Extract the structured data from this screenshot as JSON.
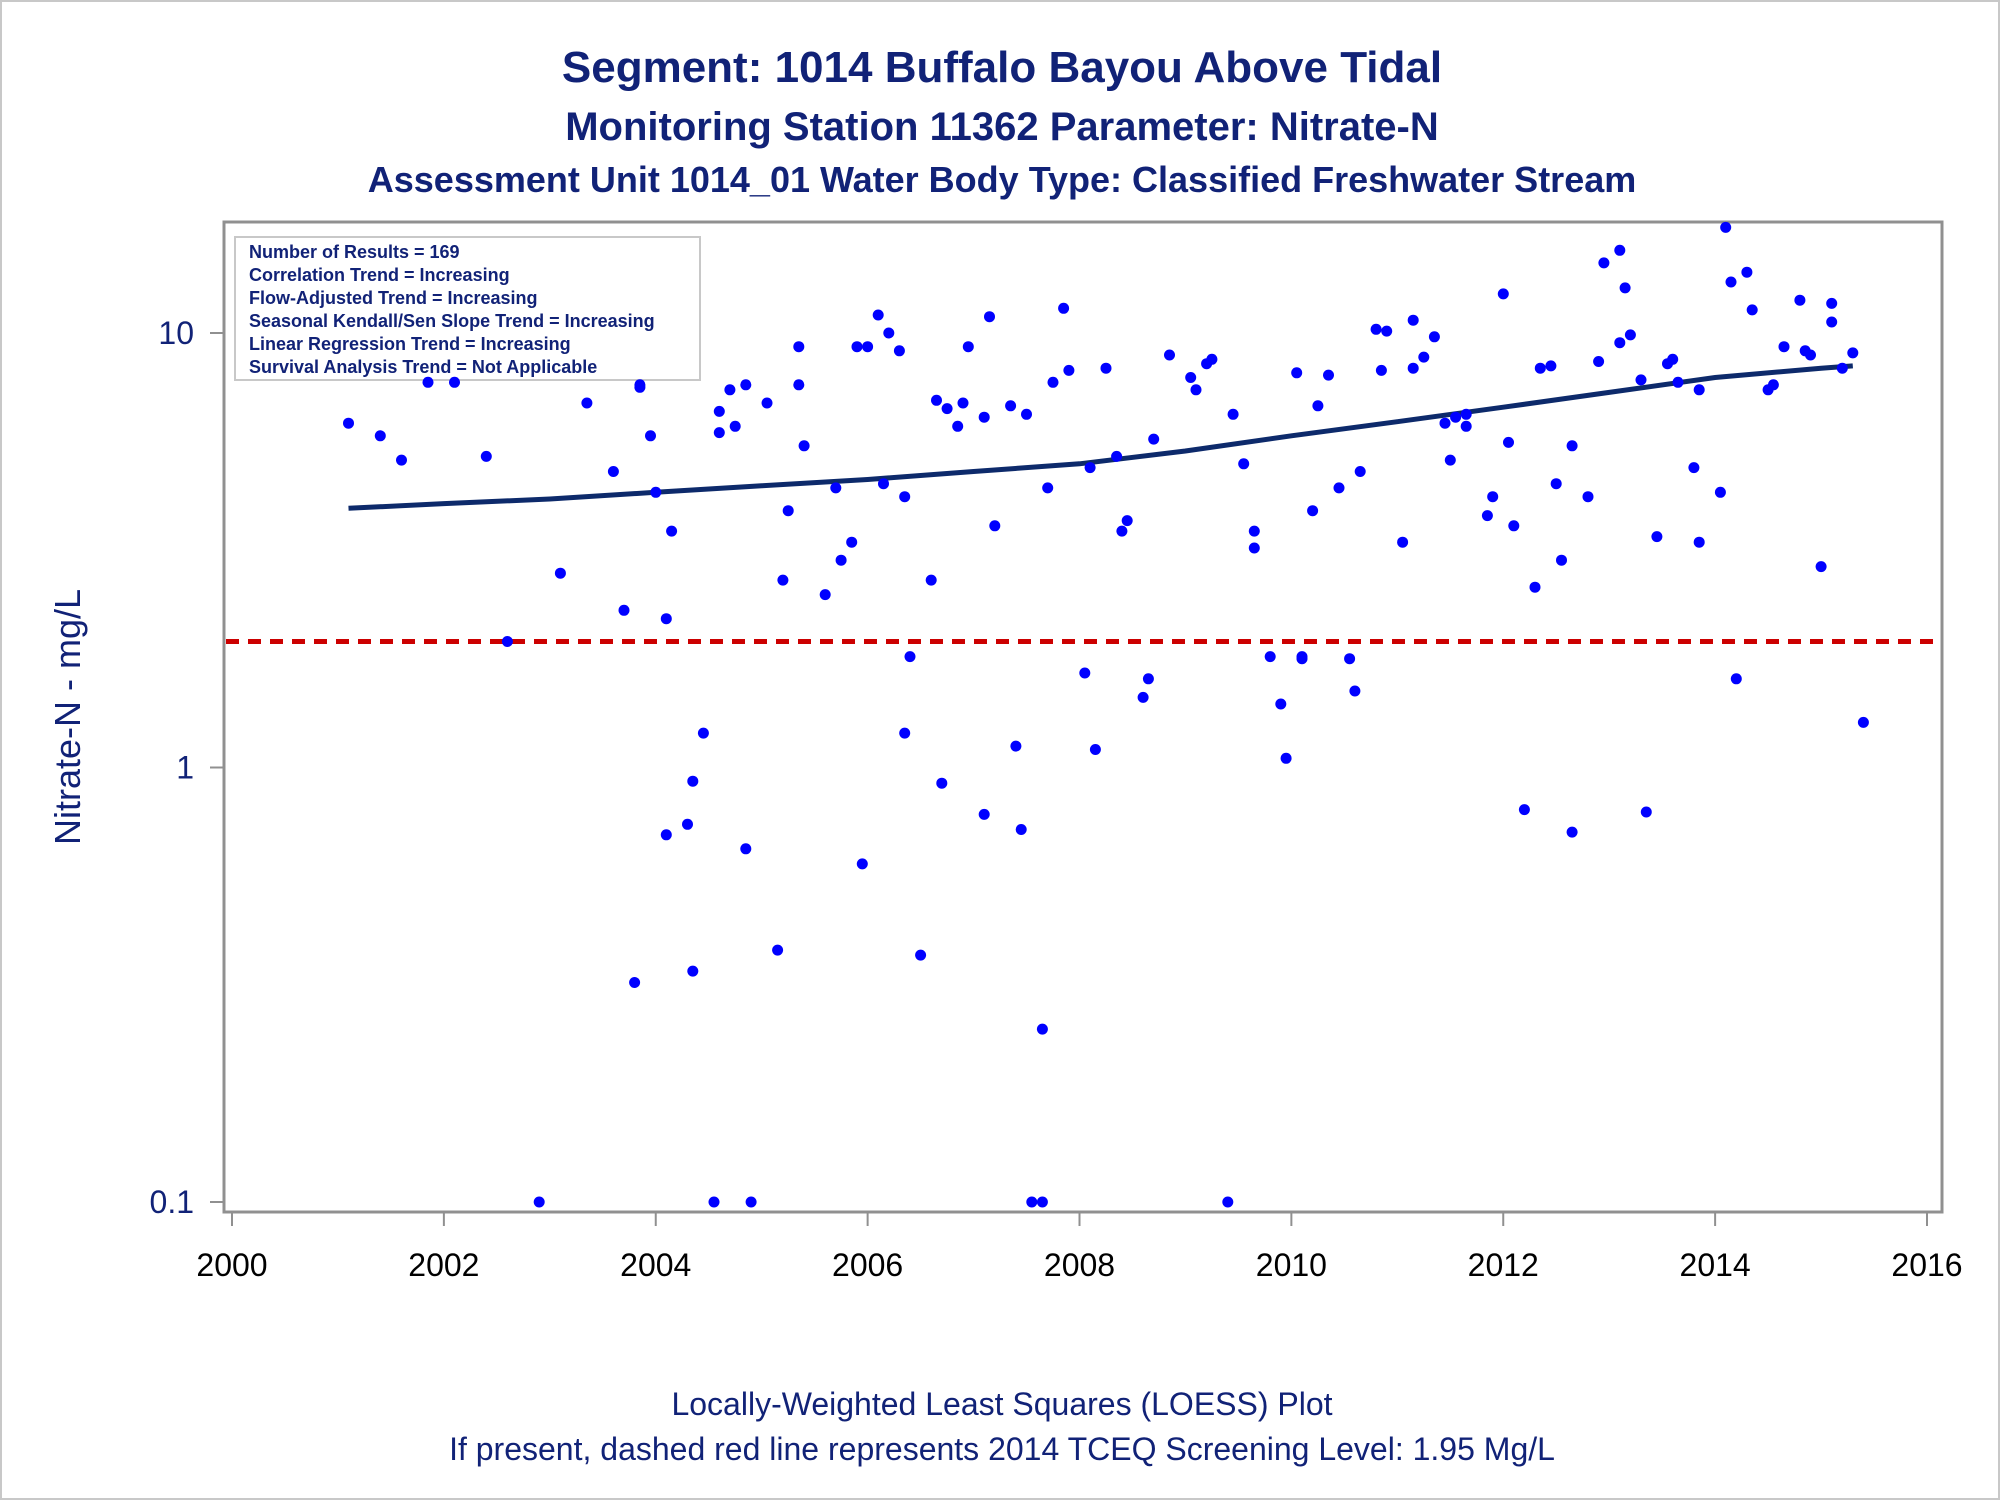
{
  "chart_data": {
    "type": "scatter",
    "title": "Segment: 1014  Buffalo Bayou Above Tidal",
    "subtitle": "Monitoring Station 11362 Parameter: Nitrate-N",
    "subtitle2": "Assessment Unit 1014_01   Water Body Type: Classified Freshwater Stream",
    "ylabel": "Nitrate-N - mg/L",
    "xlabel": "",
    "xlim": [
      2000,
      2016
    ],
    "ylim": [
      0.1,
      18
    ],
    "yscale": "log",
    "xticks": [
      "2000",
      "2002",
      "2004",
      "2006",
      "2008",
      "2010",
      "2012",
      "2014",
      "2016"
    ],
    "yticks": [
      "0.1",
      "1",
      "10"
    ],
    "legend_placement": "top-left",
    "stats_box": [
      "Number of Results = 169",
      "Correlation Trend = Increasing",
      "Flow-Adjusted Trend = Increasing",
      "Seasonal Kendall/Sen Slope Trend = Increasing",
      "Linear Regression Trend = Increasing",
      "Survival Analysis Trend = Not Applicable"
    ],
    "footer": [
      "Locally-Weighted Least Squares (LOESS) Plot",
      "If present, dashed red line represents 2014 TCEQ Screening Level: 1.95 Mg/L"
    ],
    "screening_level": 1.95,
    "colors": {
      "points": "#0000ff",
      "trend": "#0d2a6b",
      "screening": "#cc0000",
      "text": "#112277"
    },
    "points": [
      [
        2001.1,
        6.2
      ],
      [
        2001.4,
        5.8
      ],
      [
        2001.6,
        5.1
      ],
      [
        2001.85,
        7.7
      ],
      [
        2002.1,
        7.7
      ],
      [
        2002.4,
        5.2
      ],
      [
        2002.6,
        1.95
      ],
      [
        2002.9,
        0.1
      ],
      [
        2003.1,
        2.8
      ],
      [
        2003.35,
        6.9
      ],
      [
        2003.6,
        4.8
      ],
      [
        2003.7,
        2.3
      ],
      [
        2003.8,
        0.32
      ],
      [
        2003.85,
        7.6
      ],
      [
        2003.85,
        7.5
      ],
      [
        2003.95,
        5.8
      ],
      [
        2004.0,
        4.3
      ],
      [
        2004.1,
        2.2
      ],
      [
        2004.1,
        0.7
      ],
      [
        2004.15,
        3.5
      ],
      [
        2004.3,
        0.74
      ],
      [
        2004.35,
        0.93
      ],
      [
        2004.35,
        0.34
      ],
      [
        2004.45,
        1.2
      ],
      [
        2004.55,
        0.1
      ],
      [
        2004.6,
        6.6
      ],
      [
        2004.6,
        5.9
      ],
      [
        2004.7,
        7.4
      ],
      [
        2004.75,
        6.1
      ],
      [
        2004.85,
        7.6
      ],
      [
        2004.85,
        0.65
      ],
      [
        2004.9,
        0.1
      ],
      [
        2005.05,
        6.9
      ],
      [
        2005.15,
        0.38
      ],
      [
        2005.2,
        2.7
      ],
      [
        2005.25,
        3.9
      ],
      [
        2005.35,
        7.6
      ],
      [
        2005.35,
        9.3
      ],
      [
        2005.4,
        5.5
      ],
      [
        2005.6,
        2.5
      ],
      [
        2005.7,
        4.4
      ],
      [
        2005.75,
        3.0
      ],
      [
        2005.85,
        3.3
      ],
      [
        2005.9,
        9.3
      ],
      [
        2005.95,
        0.6
      ],
      [
        2006.0,
        9.3
      ],
      [
        2006.1,
        11.0
      ],
      [
        2006.15,
        4.5
      ],
      [
        2006.2,
        10.0
      ],
      [
        2006.3,
        9.1
      ],
      [
        2006.35,
        4.2
      ],
      [
        2006.35,
        1.2
      ],
      [
        2006.4,
        1.8
      ],
      [
        2006.5,
        0.37
      ],
      [
        2006.6,
        2.7
      ],
      [
        2006.65,
        7.0
      ],
      [
        2006.7,
        0.92
      ],
      [
        2006.75,
        6.7
      ],
      [
        2006.85,
        6.1
      ],
      [
        2006.9,
        6.9
      ],
      [
        2006.95,
        9.3
      ],
      [
        2007.1,
        0.78
      ],
      [
        2007.1,
        6.4
      ],
      [
        2007.15,
        10.9
      ],
      [
        2007.2,
        3.6
      ],
      [
        2007.35,
        6.8
      ],
      [
        2007.4,
        1.12
      ],
      [
        2007.45,
        0.72
      ],
      [
        2007.5,
        6.5
      ],
      [
        2007.55,
        0.1
      ],
      [
        2007.65,
        0.1
      ],
      [
        2007.65,
        0.25
      ],
      [
        2007.7,
        4.4
      ],
      [
        2007.75,
        7.7
      ],
      [
        2007.85,
        11.4
      ],
      [
        2007.9,
        8.2
      ],
      [
        2008.05,
        1.65
      ],
      [
        2008.1,
        4.9
      ],
      [
        2008.15,
        1.1
      ],
      [
        2008.25,
        8.3
      ],
      [
        2008.35,
        5.2
      ],
      [
        2008.4,
        3.5
      ],
      [
        2008.45,
        3.7
      ],
      [
        2008.6,
        1.45
      ],
      [
        2008.65,
        1.6
      ],
      [
        2008.7,
        5.7
      ],
      [
        2008.85,
        8.9
      ],
      [
        2009.05,
        7.9
      ],
      [
        2009.1,
        7.4
      ],
      [
        2009.2,
        8.5
      ],
      [
        2009.25,
        8.7
      ],
      [
        2009.4,
        0.1
      ],
      [
        2009.45,
        6.5
      ],
      [
        2009.55,
        5.0
      ],
      [
        2009.65,
        3.5
      ],
      [
        2009.65,
        3.2
      ],
      [
        2009.8,
        1.8
      ],
      [
        2009.9,
        1.4
      ],
      [
        2009.95,
        1.05
      ],
      [
        2010.05,
        8.1
      ],
      [
        2010.1,
        1.8
      ],
      [
        2010.1,
        1.78
      ],
      [
        2010.2,
        3.9
      ],
      [
        2010.25,
        6.8
      ],
      [
        2010.35,
        8.0
      ],
      [
        2010.45,
        4.4
      ],
      [
        2010.55,
        1.78
      ],
      [
        2010.6,
        1.5
      ],
      [
        2010.65,
        4.8
      ],
      [
        2010.8,
        10.2
      ],
      [
        2010.85,
        8.2
      ],
      [
        2010.9,
        10.1
      ],
      [
        2011.05,
        3.3
      ],
      [
        2011.15,
        10.7
      ],
      [
        2011.15,
        8.3
      ],
      [
        2011.25,
        8.8
      ],
      [
        2011.35,
        9.8
      ],
      [
        2011.45,
        6.2
      ],
      [
        2011.5,
        5.1
      ],
      [
        2011.55,
        6.4
      ],
      [
        2011.65,
        6.5
      ],
      [
        2011.65,
        6.1
      ],
      [
        2011.85,
        3.8
      ],
      [
        2011.9,
        4.2
      ],
      [
        2012.0,
        12.3
      ],
      [
        2012.05,
        5.6
      ],
      [
        2012.1,
        3.6
      ],
      [
        2012.2,
        0.8
      ],
      [
        2012.3,
        2.6
      ],
      [
        2012.35,
        8.3
      ],
      [
        2012.45,
        8.4
      ],
      [
        2012.5,
        4.5
      ],
      [
        2012.55,
        3.0
      ],
      [
        2012.65,
        5.5
      ],
      [
        2012.65,
        0.71
      ],
      [
        2012.8,
        4.2
      ],
      [
        2012.9,
        8.6
      ],
      [
        2012.95,
        14.5
      ],
      [
        2013.1,
        9.5
      ],
      [
        2013.1,
        15.5
      ],
      [
        2013.15,
        12.7
      ],
      [
        2013.2,
        9.9
      ],
      [
        2013.3,
        7.8
      ],
      [
        2013.35,
        0.79
      ],
      [
        2013.45,
        3.4
      ],
      [
        2013.55,
        8.5
      ],
      [
        2013.6,
        8.7
      ],
      [
        2013.65,
        7.7
      ],
      [
        2013.8,
        4.9
      ],
      [
        2013.85,
        3.3
      ],
      [
        2013.85,
        7.4
      ],
      [
        2014.05,
        4.3
      ],
      [
        2014.1,
        17.5
      ],
      [
        2014.15,
        13.1
      ],
      [
        2014.2,
        1.6
      ],
      [
        2014.3,
        13.8
      ],
      [
        2014.35,
        11.3
      ],
      [
        2014.5,
        7.4
      ],
      [
        2014.55,
        7.6
      ],
      [
        2014.65,
        9.3
      ],
      [
        2014.8,
        11.9
      ],
      [
        2014.85,
        9.1
      ],
      [
        2014.9,
        8.9
      ],
      [
        2015.0,
        2.9
      ],
      [
        2015.1,
        11.7
      ],
      [
        2015.1,
        10.6
      ],
      [
        2015.2,
        8.3
      ],
      [
        2015.3,
        9.0
      ],
      [
        2015.4,
        1.27
      ]
    ],
    "trend": [
      [
        2001.1,
        3.95
      ],
      [
        2002.0,
        4.05
      ],
      [
        2003.0,
        4.15
      ],
      [
        2004.0,
        4.3
      ],
      [
        2005.0,
        4.45
      ],
      [
        2006.0,
        4.6
      ],
      [
        2007.0,
        4.8
      ],
      [
        2008.0,
        5.0
      ],
      [
        2009.0,
        5.35
      ],
      [
        2010.0,
        5.8
      ],
      [
        2011.0,
        6.25
      ],
      [
        2012.0,
        6.75
      ],
      [
        2013.0,
        7.3
      ],
      [
        2014.0,
        7.9
      ],
      [
        2015.0,
        8.3
      ],
      [
        2015.3,
        8.4
      ]
    ]
  }
}
